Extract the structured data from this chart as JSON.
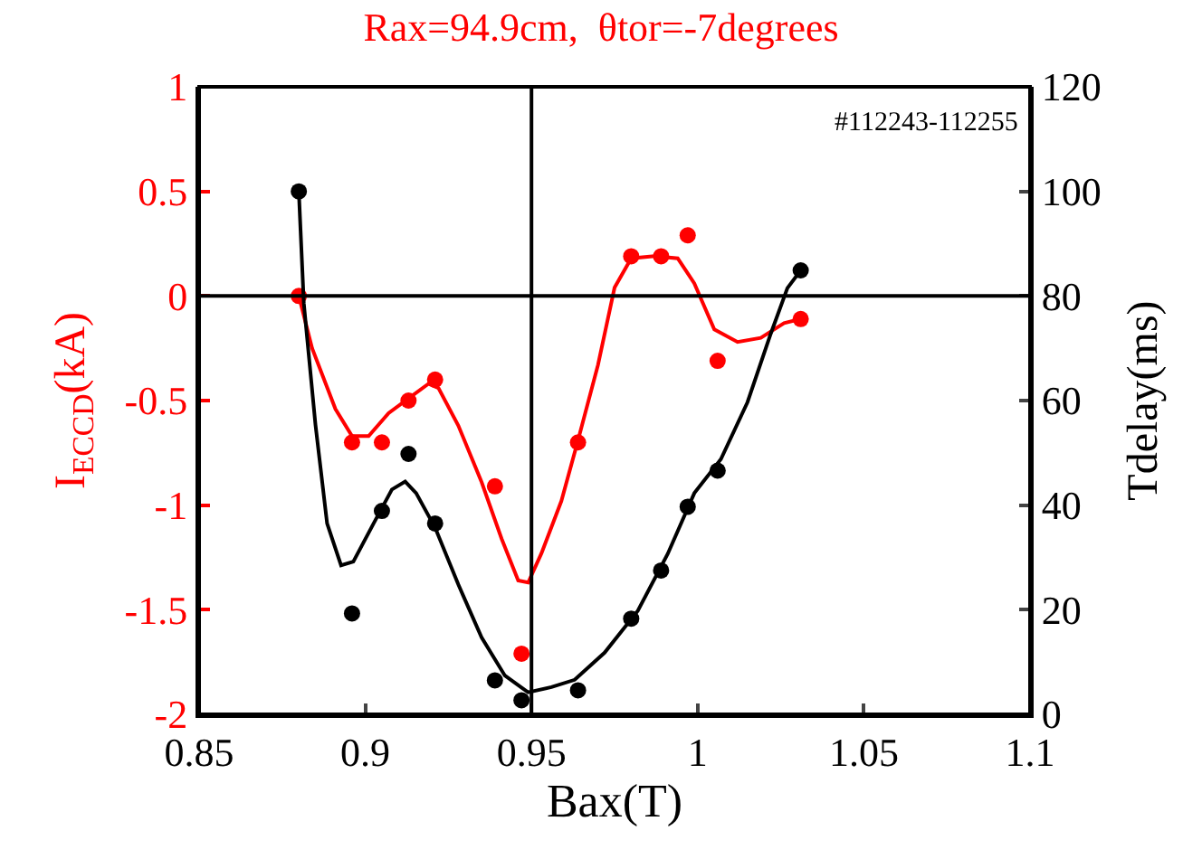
{
  "chart_data": {
    "type": "scatter",
    "title": "Rax=94.9cm,  θtor=-7degrees",
    "xlabel": "Bax(T)",
    "ylabel": "I$_{ECCD}$(kA)",
    "y2label": "Tdelay(ms)",
    "annotations": [
      "#112243-112255"
    ],
    "xlim": [
      0.85,
      1.1
    ],
    "xticks": [
      0.85,
      0.9,
      0.95,
      1,
      1.05,
      1.1
    ],
    "ylim": [
      -2,
      1
    ],
    "yticks": [
      -2,
      -1.5,
      -1,
      -0.5,
      0,
      0.5,
      1
    ],
    "y2lim": [
      0,
      120
    ],
    "y2ticks": [
      0,
      20,
      40,
      60,
      80,
      100,
      120
    ],
    "marker": "circle",
    "ref_lines": [
      {
        "axis": "x",
        "value": 0.95,
        "color": "#000000"
      },
      {
        "axis": "y",
        "value": 0,
        "color": "#000000"
      }
    ],
    "series": [
      {
        "color": "#ff0000",
        "x": [
          0.88,
          0.896,
          0.905,
          0.913,
          0.921,
          0.939,
          0.947,
          0.964,
          0.98,
          0.989,
          0.997,
          1.006,
          1.031
        ],
        "values": [
          0,
          -0.7,
          -0.7,
          -0.5,
          -0.4,
          -0.91,
          -1.71,
          -0.7,
          0.19,
          0.19,
          0.29,
          -0.31,
          -0.11
        ]
      },
      {
        "type": "line",
        "marker": "none",
        "color": "#ff0000",
        "x": [
          0.88,
          0.884,
          0.891,
          0.896,
          0.901,
          0.907,
          0.913,
          0.919,
          0.922,
          0.928,
          0.935,
          0.941,
          0.946,
          0.949,
          0.953,
          0.959,
          0.964,
          0.97,
          0.975,
          0.98,
          0.987,
          0.994,
          0.999,
          1.005,
          1.012,
          1.019,
          1.026,
          1.031
        ],
        "values": [
          0,
          -0.25,
          -0.54,
          -0.67,
          -0.67,
          -0.56,
          -0.49,
          -0.42,
          -0.44,
          -0.62,
          -0.89,
          -1.16,
          -1.36,
          -1.37,
          -1.23,
          -0.98,
          -0.69,
          -0.33,
          0.04,
          0.18,
          0.19,
          0.18,
          0.06,
          -0.16,
          -0.22,
          -0.2,
          -0.13,
          -0.11
        ]
      },
      {
        "axis": "y2",
        "color": "#000000",
        "x": [
          0.88,
          0.896,
          0.905,
          0.913,
          0.921,
          0.939,
          0.947,
          0.964,
          0.98,
          0.989,
          0.997,
          1.006,
          1.031
        ],
        "values": [
          100,
          19.3,
          38.9,
          49.8,
          36.5,
          6.5,
          2.7,
          4.6,
          18.3,
          27.5,
          39.7,
          46.6,
          84.9
        ]
      },
      {
        "type": "line",
        "marker": "none",
        "axis": "y2",
        "color": "#000000",
        "x": [
          0.88,
          0.8815,
          0.885,
          0.8885,
          0.8927,
          0.8964,
          0.9025,
          0.908,
          0.912,
          0.9153,
          0.921,
          0.928,
          0.935,
          0.942,
          0.949,
          0.956,
          0.963,
          0.972,
          0.982,
          0.991,
          0.999,
          1.007,
          1.015,
          1.022,
          1.027,
          1.031
        ],
        "values": [
          100,
          78.6,
          55.4,
          36.5,
          28.5,
          29.2,
          36.5,
          43,
          44.5,
          42.3,
          35.7,
          24.8,
          14.7,
          7.4,
          4.2,
          5.2,
          6.6,
          11.8,
          19.8,
          30.7,
          42.3,
          48.8,
          59.7,
          72.8,
          81.5,
          84.9
        ]
      }
    ]
  }
}
